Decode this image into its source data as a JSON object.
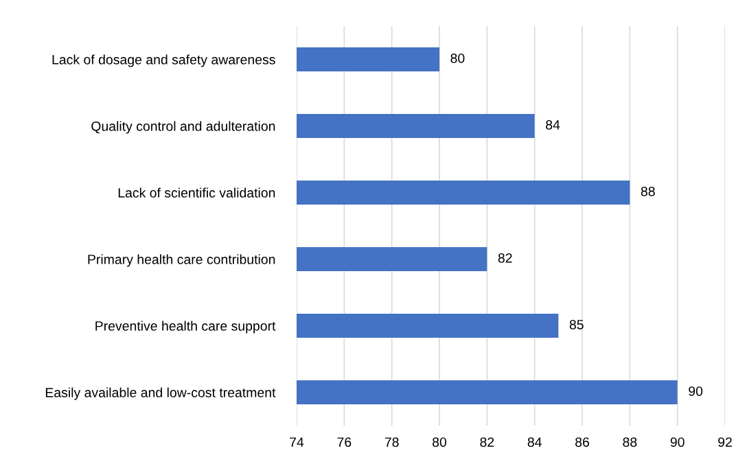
{
  "chart_data": {
    "type": "bar",
    "orientation": "horizontal",
    "categories": [
      "Lack of dosage and safety awareness",
      "Quality control and adulteration",
      "Lack of scientific validation",
      "Primary health care contribution",
      "Preventive health care support",
      "Easily available and low-cost treatment"
    ],
    "values": [
      80,
      84,
      88,
      82,
      85,
      90
    ],
    "color": "#4472c4",
    "xlim": [
      74,
      92
    ],
    "xticks": [
      74,
      76,
      78,
      80,
      82,
      84,
      86,
      88,
      90,
      92
    ],
    "grid": "x",
    "data_labels": true
  }
}
